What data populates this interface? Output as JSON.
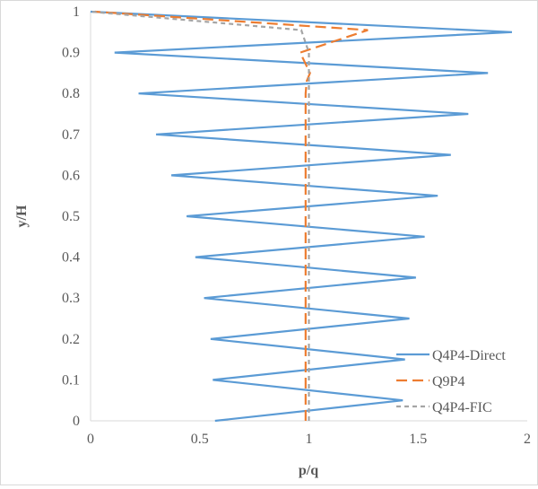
{
  "chart_data": {
    "type": "line",
    "xlabel": "p/q",
    "ylabel": "y/H",
    "xlim": [
      0,
      2
    ],
    "ylim": [
      0,
      1
    ],
    "xticks": [
      "0",
      "0.5",
      "1",
      "1.5",
      "2"
    ],
    "yticks": [
      "0",
      "0.1",
      "0.2",
      "0.3",
      "0.4",
      "0.5",
      "0.6",
      "0.7",
      "0.8",
      "0.9",
      "1"
    ],
    "grid": false,
    "legend": "bottom-right",
    "series": [
      {
        "name": "Q4P4-Direct",
        "color": "#5b9bd5",
        "dash": "solid",
        "x": [
          0.57,
          1.43,
          0.56,
          1.44,
          0.55,
          1.46,
          0.52,
          1.49,
          0.48,
          1.53,
          0.44,
          1.59,
          0.37,
          1.65,
          0.3,
          1.73,
          0.22,
          1.82,
          0.11,
          1.93,
          0.0
        ],
        "y": [
          0,
          0.05,
          0.1,
          0.15,
          0.2,
          0.25,
          0.3,
          0.35,
          0.4,
          0.45,
          0.5,
          0.55,
          0.6,
          0.65,
          0.7,
          0.75,
          0.8,
          0.85,
          0.9,
          0.95,
          1.0
        ]
      },
      {
        "name": "Q9P4",
        "color": "#ed7d31",
        "dash": "long",
        "x": [
          0.985,
          0.985,
          0.985,
          0.99,
          1.005,
          0.96,
          1.27,
          0.02
        ],
        "y": [
          0,
          0.5,
          0.8,
          0.83,
          0.85,
          0.9,
          0.955,
          1.0
        ]
      },
      {
        "name": "Q4P4-FIC",
        "color": "#a5a5a5",
        "dash": "short",
        "x": [
          1.0,
          1.0,
          1.0,
          0.965,
          0.0
        ],
        "y": [
          0,
          0.5,
          0.9,
          0.955,
          1.0
        ]
      }
    ]
  }
}
